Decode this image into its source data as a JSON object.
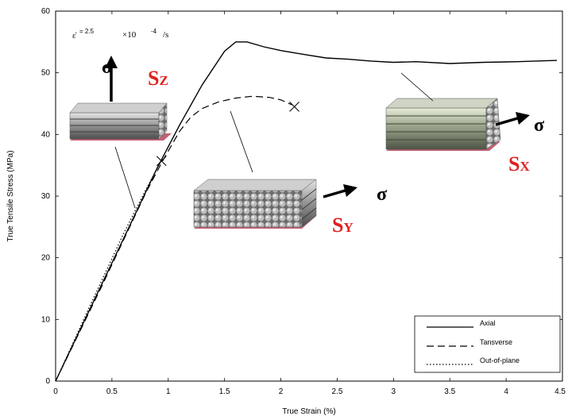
{
  "chart_data": {
    "type": "line",
    "title": "",
    "xlabel": "True Strain (%)",
    "ylabel": "True Tensile Stress (MPa)",
    "xlim": [
      0,
      4.5
    ],
    "ylim": [
      0,
      60
    ],
    "x_ticks": [
      "0",
      "0.5",
      "1",
      "1.5",
      "2",
      "2.5",
      "3",
      "3.5",
      "4",
      "4.5"
    ],
    "y_ticks": [
      "0",
      "10",
      "20",
      "30",
      "40",
      "50",
      "60"
    ],
    "grid": false,
    "legend_position": "bottom-right",
    "series": [
      {
        "name": "Axial",
        "line_style": "solid",
        "x": [
          0,
          0.3,
          0.6,
          0.9,
          1.1,
          1.3,
          1.5,
          1.6,
          1.7,
          1.85,
          2.0,
          2.2,
          2.4,
          2.6,
          2.8,
          3.0,
          3.2,
          3.5,
          3.8,
          4.1,
          4.45
        ],
        "y": [
          0,
          11.5,
          23,
          34.5,
          41.5,
          48,
          53.5,
          55,
          55,
          54.2,
          53.6,
          53,
          52.4,
          52.2,
          51.9,
          51.7,
          51.8,
          51.5,
          51.7,
          51.8,
          52
        ]
      },
      {
        "name": "Tansverse",
        "line_style": "dashed",
        "x": [
          0,
          0.4,
          0.8,
          0.95,
          1.1,
          1.2,
          1.3,
          1.45,
          1.6,
          1.75,
          1.9,
          2.0,
          2.1
        ],
        "y": [
          0,
          15,
          30.5,
          35.7,
          40.5,
          42.8,
          44.2,
          45.3,
          45.9,
          46.2,
          46,
          45.6,
          44.8
        ]
      },
      {
        "name": "Out-of-plane",
        "line_style": "dotted",
        "x": [
          0,
          0.3,
          0.6,
          0.8,
          0.94
        ],
        "y": [
          0,
          12,
          23.8,
          31,
          35.8
        ]
      }
    ],
    "failure_markers": [
      {
        "x": 0.94,
        "y": 35.7
      },
      {
        "x": 2.12,
        "y": 44.5
      }
    ],
    "annotations": {
      "strain_rate": {
        "symbol": "ε̇",
        "eq": "= 2.5",
        "times": "×10",
        "exp": "-4",
        "unit": "/s"
      },
      "sigma": "σ",
      "specimens": [
        {
          "main": "S",
          "sub": "Z",
          "color": "#e02020"
        },
        {
          "main": "S",
          "sub": "Y",
          "color": "#e02020"
        },
        {
          "main": "S",
          "sub": "X",
          "color": "#e02020"
        }
      ]
    }
  }
}
